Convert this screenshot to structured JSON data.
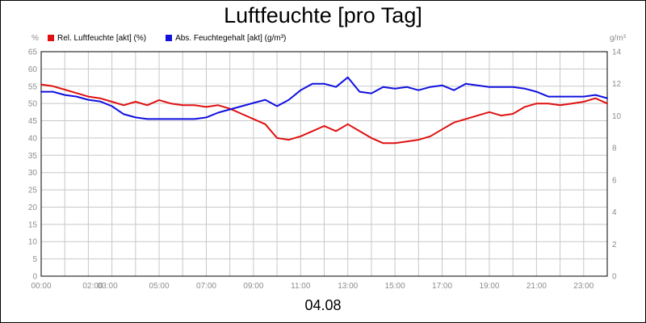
{
  "title": "Luftfeuchte [pro Tag]",
  "date_label": "04.08",
  "units": {
    "left": "%",
    "right": "g/m³"
  },
  "legend": [
    {
      "label": "Rel. Luftfeuchte [akt] (%)",
      "color": "#e01010"
    },
    {
      "label": "Abs. Feuchtegehalt [akt] (g/m³)",
      "color": "#1010e0"
    }
  ],
  "chart_data": {
    "type": "line",
    "title": "Luftfeuchte [pro Tag]",
    "xlabel": "04.08",
    "x_tick_labels": [
      "00:00",
      "02:00",
      "03:00",
      "05:00",
      "07:00",
      "09:00",
      "11:00",
      "13:00",
      "15:00",
      "17:00",
      "19:00",
      "21:00",
      "23:00"
    ],
    "x_tick_hours": [
      0,
      2,
      3,
      5,
      7,
      9,
      11,
      13,
      15,
      17,
      19,
      21,
      23
    ],
    "xlim": [
      0,
      24
    ],
    "y_left": {
      "label": "%",
      "ylim": [
        0,
        65
      ],
      "ticks": [
        0,
        5,
        10,
        15,
        20,
        25,
        30,
        35,
        40,
        45,
        50,
        55,
        60,
        65
      ]
    },
    "y_right": {
      "label": "g/m³",
      "ylim": [
        0,
        14
      ],
      "ticks": [
        0,
        2,
        4,
        6,
        8,
        10,
        12,
        14
      ]
    },
    "grid": true,
    "series": [
      {
        "name": "Rel. Luftfeuchte [akt] (%)",
        "axis": "left",
        "color": "#e01010",
        "x": [
          0,
          0.5,
          1,
          1.5,
          2,
          2.5,
          3,
          3.5,
          4,
          4.5,
          5,
          5.5,
          6,
          6.5,
          7,
          7.5,
          8,
          8.5,
          9,
          9.5,
          10,
          10.5,
          11,
          11.5,
          12,
          12.5,
          13,
          13.5,
          14,
          14.5,
          15,
          15.5,
          16,
          16.5,
          17,
          17.5,
          18,
          18.5,
          19,
          19.5,
          20,
          20.5,
          21,
          21.5,
          22,
          22.5,
          23,
          23.5,
          24
        ],
        "values": [
          55.5,
          55,
          54,
          53,
          52,
          51.5,
          50.5,
          49.5,
          50.5,
          49.5,
          51,
          50,
          49.5,
          49.5,
          49,
          49.5,
          48.5,
          47,
          45.5,
          44,
          40,
          39.5,
          40.5,
          42,
          43.5,
          42,
          44,
          42,
          40,
          38.5,
          38.5,
          39,
          39.5,
          40.5,
          42.5,
          44.5,
          45.5,
          46.5,
          47.5,
          46.5,
          47,
          49,
          50,
          50,
          49.5,
          50,
          50.5,
          51.5,
          50
        ]
      },
      {
        "name": "Abs. Feuchtegehalt [akt] (g/m³)",
        "axis": "right",
        "color": "#1010e0",
        "x": [
          0,
          0.5,
          1,
          1.5,
          2,
          2.5,
          3,
          3.5,
          4,
          4.5,
          5,
          5.5,
          6,
          6.5,
          7,
          7.5,
          8,
          8.5,
          9,
          9.5,
          10,
          10.5,
          11,
          11.5,
          12,
          12.5,
          13,
          13.5,
          14,
          14.5,
          15,
          15.5,
          16,
          16.5,
          17,
          17.5,
          18,
          18.5,
          19,
          19.5,
          20,
          20.5,
          21,
          21.5,
          22,
          22.5,
          23,
          23.5,
          24
        ],
        "values": [
          11.5,
          11.5,
          11.3,
          11.2,
          11.0,
          10.9,
          10.6,
          10.1,
          9.9,
          9.8,
          9.8,
          9.8,
          9.8,
          9.8,
          9.9,
          10.2,
          10.4,
          10.6,
          10.8,
          11.0,
          10.6,
          11.0,
          11.6,
          12.0,
          12.0,
          11.8,
          12.4,
          11.5,
          11.4,
          11.8,
          11.7,
          11.8,
          11.6,
          11.8,
          11.9,
          11.6,
          12.0,
          11.9,
          11.8,
          11.8,
          11.8,
          11.7,
          11.5,
          11.2,
          11.2,
          11.2,
          11.2,
          11.3,
          11.1
        ]
      }
    ]
  }
}
